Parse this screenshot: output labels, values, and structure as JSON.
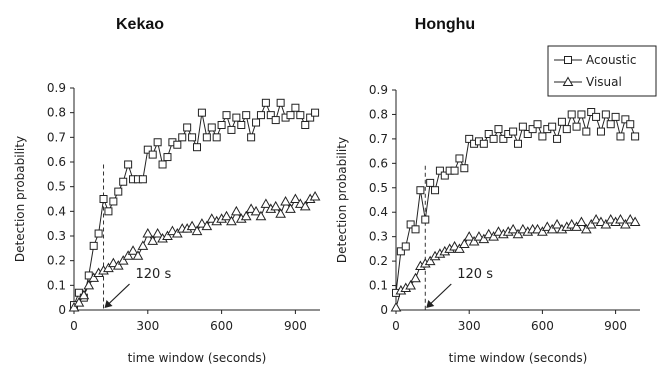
{
  "chart_data": [
    {
      "type": "line",
      "title": "Kekao",
      "xlabel": "time window (seconds)",
      "ylabel": "Detection probability",
      "xlim": [
        0,
        1000
      ],
      "ylim": [
        0,
        0.9
      ],
      "xticks": [
        0,
        300,
        600,
        900
      ],
      "xtick_labels": [
        "0",
        "300",
        "600",
        "900"
      ],
      "yticks": [
        0,
        0.1,
        0.2,
        0.3,
        0.4,
        0.5,
        0.6,
        0.7,
        0.8,
        0.9
      ],
      "ytick_labels": [
        "0",
        "0.1",
        "0.2",
        "0.3",
        "0.4",
        "0.5",
        "0.6",
        "0.7",
        "0.8",
        "0.9"
      ],
      "grid": false,
      "annotation": {
        "text": "120 s",
        "x": 120
      },
      "series": [
        {
          "name": "Acoustic",
          "marker": "square",
          "x": [
            0,
            20,
            40,
            60,
            80,
            100,
            120,
            140,
            160,
            180,
            200,
            220,
            240,
            260,
            280,
            300,
            320,
            340,
            360,
            380,
            400,
            420,
            440,
            460,
            480,
            500,
            520,
            540,
            560,
            580,
            600,
            620,
            640,
            660,
            680,
            700,
            720,
            740,
            760,
            780,
            800,
            820,
            840,
            860,
            880,
            900,
            920,
            940,
            960,
            980
          ],
          "y": [
            0.02,
            0.07,
            0.05,
            0.14,
            0.26,
            0.31,
            0.45,
            0.4,
            0.44,
            0.48,
            0.52,
            0.59,
            0.53,
            0.53,
            0.53,
            0.65,
            0.63,
            0.68,
            0.59,
            0.62,
            0.68,
            0.67,
            0.7,
            0.74,
            0.7,
            0.66,
            0.8,
            0.7,
            0.74,
            0.7,
            0.75,
            0.79,
            0.73,
            0.78,
            0.75,
            0.79,
            0.7,
            0.76,
            0.79,
            0.84,
            0.79,
            0.77,
            0.84,
            0.78,
            0.79,
            0.82,
            0.79,
            0.75,
            0.78,
            0.8
          ]
        },
        {
          "name": "Visual",
          "marker": "triangle",
          "x": [
            0,
            20,
            40,
            60,
            80,
            100,
            120,
            140,
            160,
            180,
            200,
            220,
            240,
            260,
            280,
            300,
            320,
            340,
            360,
            380,
            400,
            420,
            440,
            460,
            480,
            500,
            520,
            540,
            560,
            580,
            600,
            620,
            640,
            660,
            680,
            700,
            720,
            740,
            760,
            780,
            800,
            820,
            840,
            860,
            880,
            900,
            920,
            940,
            960,
            980
          ],
          "y": [
            0.01,
            0.03,
            0.06,
            0.1,
            0.13,
            0.15,
            0.16,
            0.17,
            0.19,
            0.18,
            0.2,
            0.22,
            0.24,
            0.22,
            0.26,
            0.31,
            0.28,
            0.31,
            0.29,
            0.3,
            0.32,
            0.31,
            0.33,
            0.33,
            0.34,
            0.32,
            0.35,
            0.34,
            0.37,
            0.36,
            0.37,
            0.38,
            0.36,
            0.4,
            0.37,
            0.38,
            0.41,
            0.4,
            0.38,
            0.43,
            0.41,
            0.42,
            0.39,
            0.44,
            0.41,
            0.45,
            0.43,
            0.42,
            0.45,
            0.46
          ]
        }
      ]
    },
    {
      "type": "line",
      "title": "Honghu",
      "xlabel": "time window (seconds)",
      "ylabel": "Detection probability",
      "xlim": [
        0,
        1000
      ],
      "ylim": [
        0,
        0.9
      ],
      "xticks": [
        0,
        300,
        600,
        900
      ],
      "xtick_labels": [
        "0",
        "300",
        "600",
        "900"
      ],
      "yticks": [
        0,
        0.1,
        0.2,
        0.3,
        0.4,
        0.5,
        0.6,
        0.7,
        0.8,
        0.9
      ],
      "ytick_labels": [
        "0",
        "0.1",
        "0.2",
        "0.3",
        "0.4",
        "0.5",
        "0.6",
        "0.7",
        "0.8",
        "0.9"
      ],
      "grid": false,
      "legend": {
        "position": "top-right",
        "entries": [
          "Acoustic",
          "Visual"
        ]
      },
      "annotation": {
        "text": "120 s",
        "x": 120
      },
      "series": [
        {
          "name": "Acoustic",
          "marker": "square",
          "x": [
            0,
            20,
            40,
            60,
            80,
            100,
            120,
            140,
            160,
            180,
            200,
            220,
            240,
            260,
            280,
            300,
            320,
            340,
            360,
            380,
            400,
            420,
            440,
            460,
            480,
            500,
            520,
            540,
            560,
            580,
            600,
            620,
            640,
            660,
            680,
            700,
            720,
            740,
            760,
            780,
            800,
            820,
            840,
            860,
            880,
            900,
            920,
            940,
            960,
            980
          ],
          "y": [
            0.07,
            0.24,
            0.26,
            0.35,
            0.33,
            0.49,
            0.37,
            0.52,
            0.49,
            0.57,
            0.55,
            0.57,
            0.57,
            0.62,
            0.58,
            0.7,
            0.68,
            0.69,
            0.68,
            0.72,
            0.7,
            0.74,
            0.7,
            0.72,
            0.73,
            0.68,
            0.75,
            0.72,
            0.74,
            0.76,
            0.71,
            0.74,
            0.75,
            0.7,
            0.77,
            0.74,
            0.8,
            0.75,
            0.8,
            0.73,
            0.81,
            0.79,
            0.73,
            0.8,
            0.76,
            0.79,
            0.71,
            0.78,
            0.76,
            0.71
          ]
        },
        {
          "name": "Visual",
          "marker": "triangle",
          "x": [
            0,
            20,
            40,
            60,
            80,
            100,
            120,
            140,
            160,
            180,
            200,
            220,
            240,
            260,
            280,
            300,
            320,
            340,
            360,
            380,
            400,
            420,
            440,
            460,
            480,
            500,
            520,
            540,
            560,
            580,
            600,
            620,
            640,
            660,
            680,
            700,
            720,
            740,
            760,
            780,
            800,
            820,
            840,
            860,
            880,
            900,
            920,
            940,
            960,
            980
          ],
          "y": [
            0.01,
            0.08,
            0.09,
            0.1,
            0.13,
            0.18,
            0.19,
            0.2,
            0.22,
            0.23,
            0.24,
            0.25,
            0.26,
            0.25,
            0.27,
            0.3,
            0.28,
            0.3,
            0.29,
            0.31,
            0.3,
            0.32,
            0.31,
            0.32,
            0.33,
            0.31,
            0.33,
            0.32,
            0.33,
            0.33,
            0.32,
            0.34,
            0.33,
            0.35,
            0.33,
            0.34,
            0.35,
            0.34,
            0.36,
            0.33,
            0.35,
            0.37,
            0.36,
            0.35,
            0.37,
            0.36,
            0.37,
            0.35,
            0.37,
            0.36
          ]
        }
      ]
    }
  ]
}
